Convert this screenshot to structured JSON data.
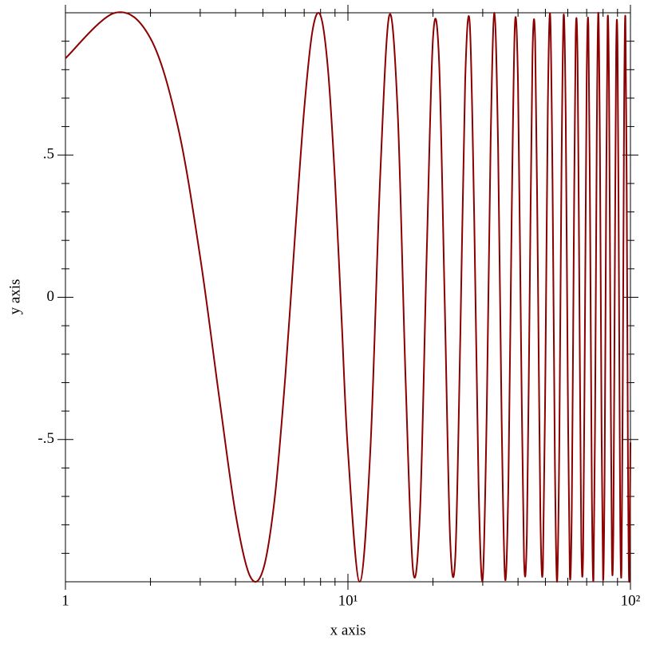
{
  "chart_data": {
    "type": "line",
    "xlabel": "x axis",
    "ylabel": "y axis",
    "xscale": "log",
    "xlim": [
      1,
      100
    ],
    "ylim": [
      -1,
      1
    ],
    "xticks": [
      {
        "value": 1,
        "label": "1"
      },
      {
        "value": 10,
        "label": "10¹"
      },
      {
        "value": 100,
        "label": "10²"
      }
    ],
    "xminorticks": [
      2,
      3,
      4,
      5,
      6,
      7,
      8,
      9,
      20,
      30,
      40,
      50,
      60,
      70,
      80,
      90
    ],
    "yticks": [
      {
        "value": -0.5,
        "label": "-.5"
      },
      0,
      {
        "value": 0.5,
        "label": ".5"
      }
    ],
    "yminorticks": [
      -0.9,
      -0.8,
      -0.7,
      -0.6,
      -0.4,
      -0.3,
      -0.2,
      -0.1,
      0.1,
      0.2,
      0.3,
      0.4,
      0.6,
      0.7,
      0.8,
      0.9
    ],
    "x": [
      1,
      1.5,
      2,
      2.5,
      3,
      3.5,
      4,
      4.5,
      5,
      5.5,
      6,
      6.5,
      7,
      7.5,
      8,
      8.5,
      9,
      9.5,
      10,
      11,
      12,
      13,
      14,
      15,
      16,
      17,
      18,
      19,
      20,
      21,
      22,
      23,
      24,
      25,
      26,
      27,
      28,
      29,
      30,
      31,
      32,
      33,
      34,
      35,
      36,
      37,
      38,
      39,
      40,
      41,
      42,
      43,
      44,
      45,
      46,
      47,
      48,
      49,
      50,
      51,
      52,
      53,
      54,
      55,
      56,
      57,
      58,
      59,
      60,
      61,
      62,
      63,
      64,
      65,
      66,
      67,
      68,
      69,
      70,
      71,
      72,
      73,
      74,
      75,
      76,
      77,
      78,
      79,
      80,
      81,
      82,
      83,
      84,
      85,
      86,
      87,
      88,
      89,
      90,
      91,
      92,
      93,
      94,
      95,
      96,
      97,
      98,
      99,
      100
    ],
    "series": [
      {
        "color": "#8b0000",
        "values": [
          0.84,
          1.0,
          0.91,
          0.6,
          0.14,
          -0.35,
          -0.76,
          -0.98,
          -0.96,
          -0.71,
          -0.28,
          0.22,
          0.66,
          0.94,
          0.99,
          0.8,
          0.41,
          -0.08,
          -0.54,
          -1.0,
          -0.54,
          0.42,
          0.99,
          0.65,
          -0.29,
          -0.96,
          -0.75,
          0.15,
          0.91,
          0.84,
          -0.01,
          -0.85,
          -0.91,
          -0.13,
          0.76,
          0.96,
          0.27,
          -0.66,
          -0.99,
          -0.4,
          0.55,
          1.0,
          0.53,
          -0.43,
          -0.99,
          -0.64,
          0.3,
          0.96,
          0.75,
          -0.16,
          -0.92,
          -0.83,
          0.02,
          0.85,
          0.9,
          0.12,
          -0.77,
          -0.95,
          -0.26,
          0.67,
          0.99,
          0.4,
          -0.56,
          -1.0,
          -0.52,
          0.44,
          0.99,
          0.64,
          -0.3,
          -0.97,
          -0.74,
          0.17,
          0.92,
          0.83,
          -0.03,
          -0.86,
          -0.9,
          -0.11,
          0.77,
          0.95,
          0.25,
          -0.68,
          -0.99,
          -0.39,
          0.57,
          1.0,
          0.51,
          -0.44,
          -0.99,
          -0.63,
          0.31,
          0.97,
          0.73,
          -0.18,
          -0.92,
          -0.82,
          0.04,
          0.86,
          0.89,
          0.11,
          -0.78,
          -0.95,
          -0.25,
          0.68,
          0.98,
          0.38,
          -0.57,
          -1.0,
          -0.51
        ]
      }
    ]
  }
}
